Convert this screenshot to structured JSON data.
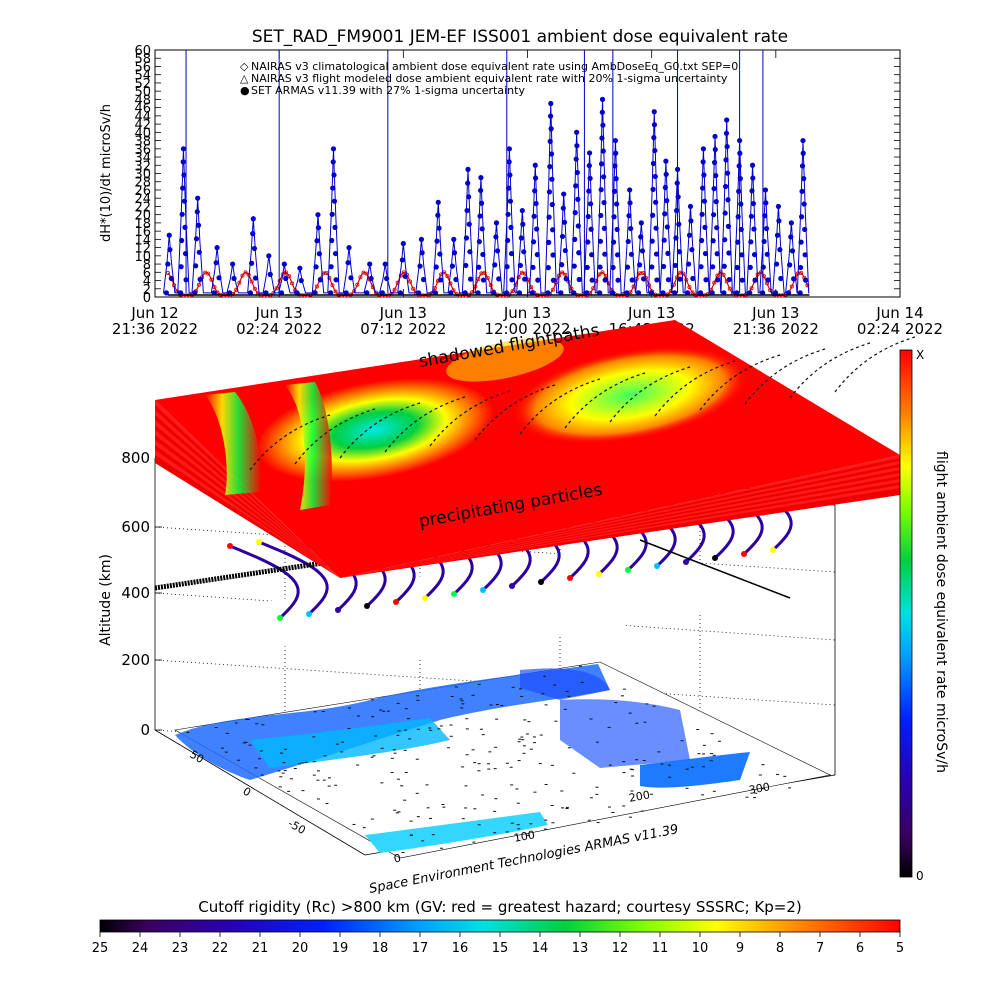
{
  "chart_data": [
    {
      "type": "line",
      "title": "SET_RAD_FM9001  JEM-EF ISS001 ambient dose equivalent rate",
      "ylabel": "dH*(10)/dt microSv/h",
      "yticks": [
        "0",
        "2",
        "4",
        "6",
        "8",
        "10",
        "12",
        "14",
        "16",
        "18",
        "20",
        "22",
        "24",
        "26",
        "28",
        "30",
        "32",
        "34",
        "36",
        "38",
        "40",
        "42",
        "44",
        "46",
        "48",
        "50",
        "52",
        "54",
        "56",
        "58",
        "60"
      ],
      "ylim": [
        0,
        60
      ],
      "x_ticks": [
        {
          "d": "Jun 12",
          "t": "21:36 2022"
        },
        {
          "d": "Jun 13",
          "t": "02:24 2022"
        },
        {
          "d": "Jun 13",
          "t": "07:12 2022"
        },
        {
          "d": "Jun 13",
          "t": "12:00 2022"
        },
        {
          "d": "Jun 13",
          "t": "16:48 2022"
        },
        {
          "d": "Jun 13",
          "t": "21:36 2022"
        },
        {
          "d": "Jun 14",
          "t": "02:24 2022"
        }
      ],
      "legend": [
        {
          "marker": "◇",
          "color": "#cc0000",
          "text": "NAIRAS v3 climatological ambient dose equivalent rate using AmbDoseEq_G0.txt SEP=0"
        },
        {
          "marker": "△",
          "color": "#000000",
          "text": "NAIRAS v3 flight modeled dose ambient equivalent rate with 20% 1-sigma uncertainty"
        },
        {
          "marker": "●",
          "color": "#0000cc",
          "text": "SET ARMAS v11.39 with 27% 1-sigma uncertainty"
        }
      ],
      "series": [
        {
          "name": "NAIRAS v3 climatological ambient dose equivalent rate using AmbDoseEq_G0.txt SEP=0",
          "color": "#dd0000",
          "peak_hours": [
            0.45,
            1.98,
            3.51,
            5.04,
            6.57,
            8.1,
            9.63,
            11.16,
            12.69,
            14.22,
            15.75,
            17.28,
            18.81,
            20.34,
            21.87,
            23.4,
            24.93
          ],
          "range": [
            0.4,
            6.0
          ]
        },
        {
          "name": "SET ARMAS v11.39 with 27% 1-sigma uncertainty",
          "color": "#0000cc",
          "spikes": [
            {
              "h": 0.55,
              "v": 15
            },
            {
              "h": 1.1,
              "v": 36
            },
            {
              "h": 1.65,
              "v": 24
            },
            {
              "h": 2.4,
              "v": 12
            },
            {
              "h": 3.0,
              "v": 8
            },
            {
              "h": 3.8,
              "v": 19
            },
            {
              "h": 4.4,
              "v": 10
            },
            {
              "h": 5.0,
              "v": 8
            },
            {
              "h": 5.6,
              "v": 7
            },
            {
              "h": 6.3,
              "v": 20
            },
            {
              "h": 6.9,
              "v": 36
            },
            {
              "h": 7.5,
              "v": 12
            },
            {
              "h": 8.3,
              "v": 8
            },
            {
              "h": 8.9,
              "v": 8
            },
            {
              "h": 9.6,
              "v": 13
            },
            {
              "h": 10.3,
              "v": 14
            },
            {
              "h": 10.95,
              "v": 23
            },
            {
              "h": 11.55,
              "v": 14
            },
            {
              "h": 12.1,
              "v": 31
            },
            {
              "h": 12.6,
              "v": 29
            },
            {
              "h": 13.2,
              "v": 18
            },
            {
              "h": 13.7,
              "v": 36
            },
            {
              "h": 14.2,
              "v": 21
            },
            {
              "h": 14.7,
              "v": 32
            },
            {
              "h": 15.3,
              "v": 47
            },
            {
              "h": 15.8,
              "v": 25
            },
            {
              "h": 16.3,
              "v": 40
            },
            {
              "h": 16.8,
              "v": 35
            },
            {
              "h": 17.3,
              "v": 48
            },
            {
              "h": 17.8,
              "v": 38
            },
            {
              "h": 18.35,
              "v": 26
            },
            {
              "h": 18.8,
              "v": 18
            },
            {
              "h": 19.3,
              "v": 45
            },
            {
              "h": 19.75,
              "v": 33
            },
            {
              "h": 20.2,
              "v": 31
            },
            {
              "h": 20.7,
              "v": 22
            },
            {
              "h": 21.2,
              "v": 36
            },
            {
              "h": 21.65,
              "v": 39
            },
            {
              "h": 22.1,
              "v": 43
            },
            {
              "h": 22.6,
              "v": 38
            },
            {
              "h": 23.1,
              "v": 32
            },
            {
              "h": 23.6,
              "v": 26
            },
            {
              "h": 24.1,
              "v": 22
            },
            {
              "h": 24.6,
              "v": 18
            },
            {
              "h": 25.05,
              "v": 38
            }
          ]
        }
      ]
    },
    {
      "type": "heatmap",
      "ylabel": "Altitude (km)",
      "zticks": [
        "0",
        "200",
        "400",
        "600",
        "800"
      ],
      "lat_ticks": [
        "50",
        "0",
        "-50"
      ],
      "lon_ticks": [
        "0",
        "100",
        "200",
        "300"
      ],
      "top_label": "shadowed flightpaths",
      "mid_label": "precipitating particles",
      "credit": "Space Environment Technologies ARMAS v11.39"
    },
    {
      "type": "colorbar",
      "label": "flight ambient dose equivalent rate microSv/h",
      "top": "X",
      "bottom": "0"
    },
    {
      "type": "colorbar",
      "title": "Cutoff rigidity (Rc) >800 km (GV: red = greatest hazard; courtesy SSSRC; Kp=2)",
      "ticks": [
        "25",
        "24",
        "23",
        "22",
        "21",
        "20",
        "19",
        "18",
        "17",
        "16",
        "15",
        "14",
        "13",
        "12",
        "11",
        "10",
        "9",
        "8",
        "7",
        "6",
        "5"
      ]
    }
  ]
}
